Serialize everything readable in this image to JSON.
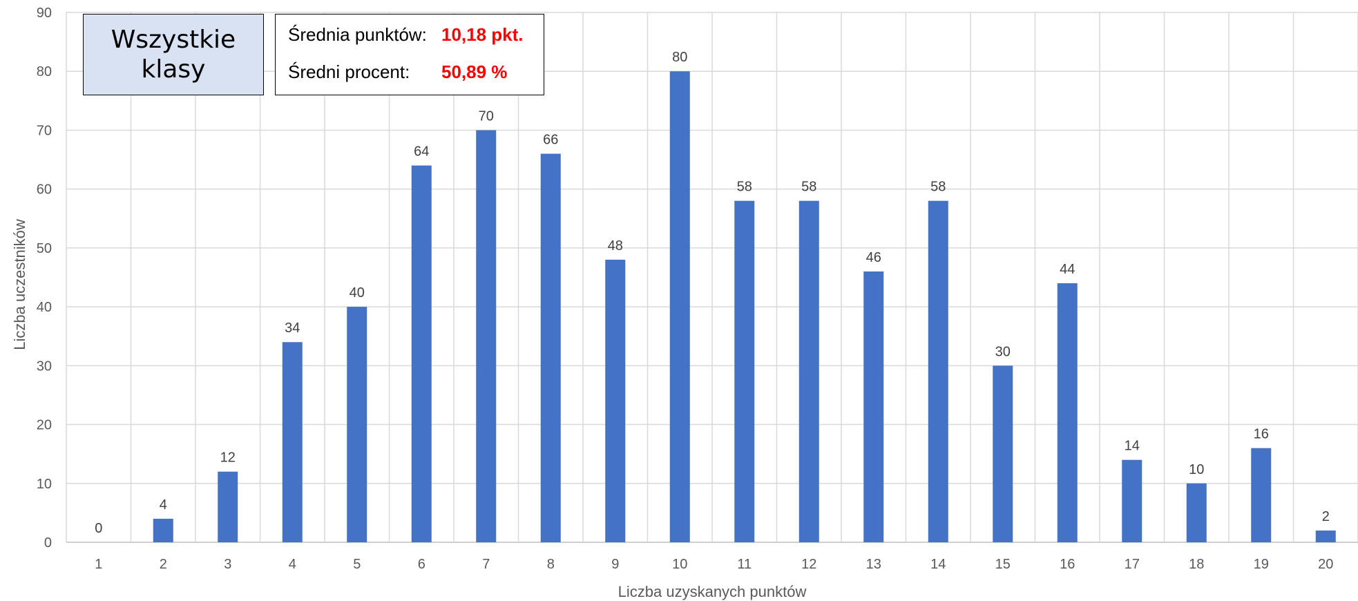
{
  "chart_data": {
    "type": "bar",
    "categories": [
      "1",
      "2",
      "3",
      "4",
      "5",
      "6",
      "7",
      "8",
      "9",
      "10",
      "11",
      "12",
      "13",
      "14",
      "15",
      "16",
      "17",
      "18",
      "19",
      "20"
    ],
    "values": [
      0,
      4,
      12,
      34,
      40,
      64,
      70,
      66,
      48,
      80,
      58,
      58,
      46,
      58,
      30,
      44,
      14,
      10,
      16,
      2
    ],
    "xlabel": "Liczba uzyskanych punktów",
    "ylabel": "Liczba uczestników",
    "ylim": [
      0,
      90
    ],
    "yticks": [
      0,
      10,
      20,
      30,
      40,
      50,
      60,
      70,
      80,
      90
    ],
    "grid": true,
    "bar_color": "#4472c4",
    "data_labels": true
  },
  "title_box": {
    "text": "Wszystkie\nklasy",
    "background": "#d9e2f3"
  },
  "stats": {
    "avg_points_label": "Średnia punktów:",
    "avg_points_value": "10,18 pkt.",
    "avg_percent_label": "Średni procent:",
    "avg_percent_value": "50,89 %",
    "value_color": "#ff0000"
  }
}
